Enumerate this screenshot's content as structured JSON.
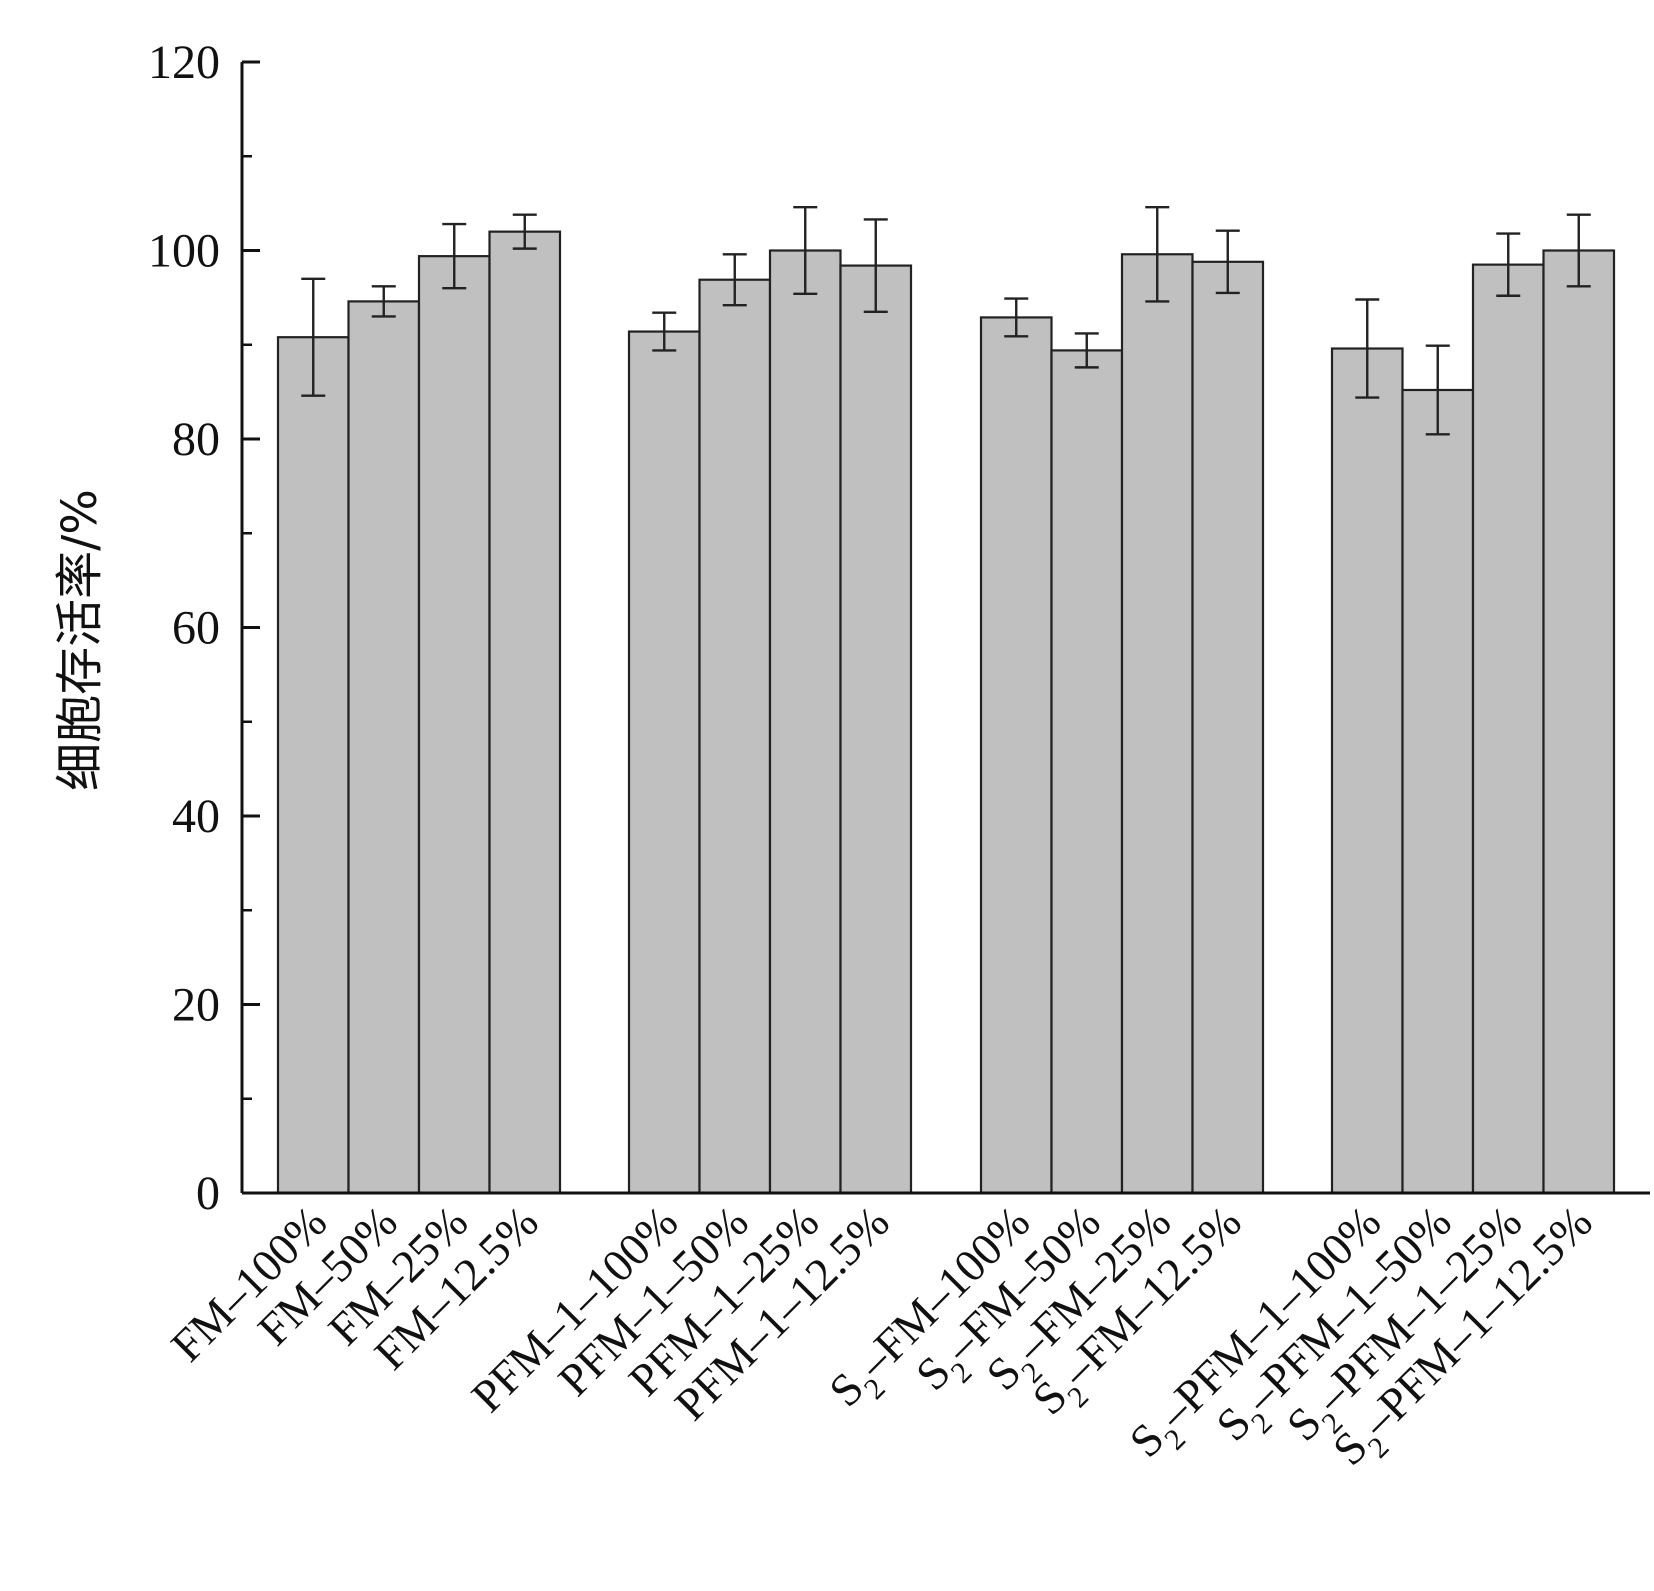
{
  "chart_data": {
    "type": "bar",
    "title": "",
    "xlabel": "",
    "ylabel": "细胞存活率/%",
    "ylim": [
      0,
      120
    ],
    "y_ticks": [
      0,
      20,
      40,
      60,
      80,
      100,
      120
    ],
    "y_minor_ticks": [
      10,
      30,
      50,
      70,
      90,
      110
    ],
    "grid": false,
    "legend": "none",
    "bar_color": "#c0c0c0",
    "groups": [
      {
        "bars": [
          {
            "base": "FM",
            "sub": "",
            "rest": "–100%",
            "value": 90.8,
            "err": 6.2
          },
          {
            "base": "FM",
            "sub": "",
            "rest": "–50%",
            "value": 94.6,
            "err": 1.6
          },
          {
            "base": "FM",
            "sub": "",
            "rest": "–25%",
            "value": 99.4,
            "err": 3.4
          },
          {
            "base": "FM",
            "sub": "",
            "rest": "–12.5%",
            "value": 102.0,
            "err": 1.8
          }
        ]
      },
      {
        "bars": [
          {
            "base": "PFM",
            "sub": "",
            "rest": "–1–100%",
            "value": 91.4,
            "err": 2.0
          },
          {
            "base": "PFM",
            "sub": "",
            "rest": "–1–50%",
            "value": 96.9,
            "err": 2.7
          },
          {
            "base": "PFM",
            "sub": "",
            "rest": "–1–25%",
            "value": 100.0,
            "err": 4.6
          },
          {
            "base": "PFM",
            "sub": "",
            "rest": "–1–12.5%",
            "value": 98.4,
            "err": 4.9
          }
        ]
      },
      {
        "bars": [
          {
            "base": "S",
            "sub": "2",
            "rest": "–FM–100%",
            "value": 92.9,
            "err": 2.0
          },
          {
            "base": "S",
            "sub": "2",
            "rest": "–FM–50%",
            "value": 89.4,
            "err": 1.8
          },
          {
            "base": "S",
            "sub": "2",
            "rest": "–FM–25%",
            "value": 99.6,
            "err": 5.0
          },
          {
            "base": "S",
            "sub": "2",
            "rest": "–FM–12.5%",
            "value": 98.8,
            "err": 3.3
          }
        ]
      },
      {
        "bars": [
          {
            "base": "S",
            "sub": "2",
            "rest": "–PFM–1–100%",
            "value": 89.6,
            "err": 5.2
          },
          {
            "base": "S",
            "sub": "2",
            "rest": "–PFM–1–50%",
            "value": 85.2,
            "err": 4.7
          },
          {
            "base": "S",
            "sub": "2",
            "rest": "–PFM–1–25%",
            "value": 98.5,
            "err": 3.3
          },
          {
            "base": "S",
            "sub": "2",
            "rest": "–PFM–1–12.5%",
            "value": 100.0,
            "err": 3.8
          }
        ]
      }
    ]
  }
}
